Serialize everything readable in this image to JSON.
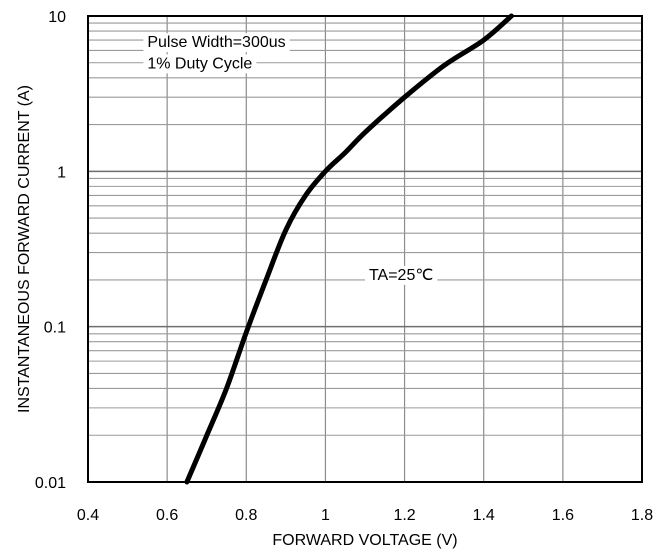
{
  "chart_data": {
    "type": "line",
    "xlabel": "FORWARD VOLTAGE (V)",
    "ylabel": "INSTANTANEOUS FORWARD CURRENT (A)",
    "xlim": [
      0.4,
      1.8
    ],
    "ylim": [
      0.01,
      10
    ],
    "yscale": "log",
    "grid": true,
    "x_ticks": [
      0.4,
      0.6,
      0.8,
      1,
      1.2,
      1.4,
      1.6,
      1.8
    ],
    "x_tick_labels": [
      "0.4",
      "0.6",
      "0.8",
      "1",
      "1.2",
      "1.4",
      "1.6",
      "1.8"
    ],
    "y_ticks": [
      0.01,
      0.1,
      1,
      10
    ],
    "y_tick_labels": [
      "0.01",
      "0.1",
      "1",
      "10"
    ],
    "series": [
      {
        "color": "#000000",
        "x": [
          0.65,
          0.7,
          0.75,
          0.8,
          0.85,
          0.9,
          0.95,
          1.0,
          1.05,
          1.1,
          1.2,
          1.3,
          1.4,
          1.47
        ],
        "y": [
          0.01,
          0.0199,
          0.04,
          0.092,
          0.2,
          0.42,
          0.7,
          1.0,
          1.32,
          1.78,
          3.0,
          4.8,
          7.0,
          10
        ]
      }
    ],
    "annotations": [
      {
        "text": "Pulse Width=300us",
        "x": 0.55,
        "y": 6.3
      },
      {
        "text": "1% Duty Cycle",
        "x": 0.55,
        "y": 4.6
      },
      {
        "text": "TA=25℃",
        "x": 1.11,
        "y": 0.2
      }
    ]
  }
}
